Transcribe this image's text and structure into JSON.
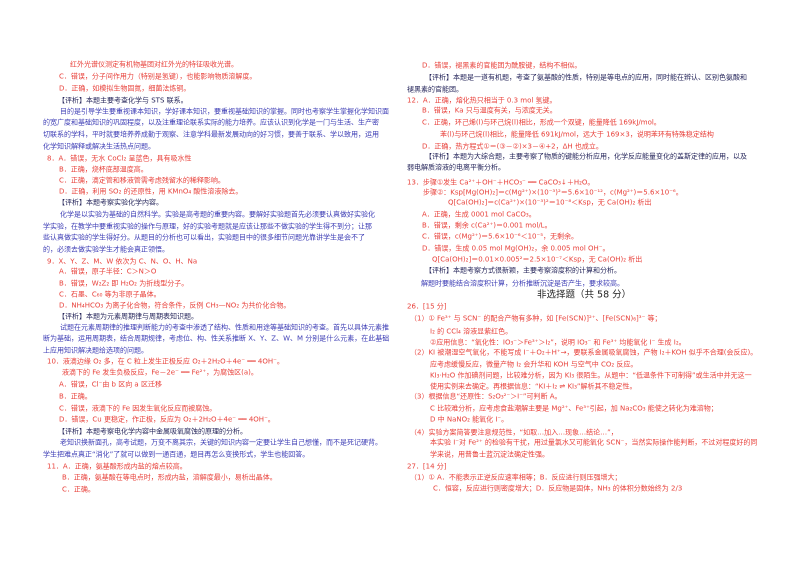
{
  "colors": {
    "answer": "#e8403a",
    "commentary": "#3d3db5",
    "heading": "#25255a"
  },
  "left": [
    "红外光谱仪测定有机物基团对红外光的特征吸收光谱。",
    "C．错误，分子间作用力（特别是氢键），也能影响物质溶解度。",
    "D．正确，如模拟生物固氮，细菌法炼铜。",
    "【评析】本题主要考查化学与 STS 联系。",
    "目的是引导学生要重视课本知识，学好课本知识，要重视基础知识的掌握。同时也考察学生掌握化学知识面",
    "的宽广度和基础知识的巩固程度，以及注重理论联系实际的能力培养。应该认识到化学是一门与生活、生产密",
    "切联系的学科，平时就要培养养成勤于观察、注意学科最新发展动向的好习惯，要善于联系、学以致用，运用",
    "化学知识解释或解决生活热点问题。",
    "8．A．错误，无水 CoCl₂ 呈蓝色，具有吸水性",
    "B．正确，烧杯底部温度高。",
    "C．正确，滴定管和移液管需考虑残留水的稀释影响。",
    "D．正确，利用 SO₂ 的还原性，用 KMnO₄ 酸性溶液除去。",
    "【评析】本题考察实验化学内容。",
    "化学是以实验为基础的自然科学。实验是高考题的重要内容。要解好实验题首先必须要认真做好实验化",
    "学实验，在教学中要重视实验的操作与原理，好的实验考题就是应该让那些不做实验的学生得不到分；让那",
    "些认真做实验的学生得好分。从题目的分析也可以看出，实验题目中的很多细节问题光靠讲学生是会不了",
    "的，必须去做实验学生才能会真正领悟。",
    "9．X、Y、Z、M、W 依次为 C、N、O、H、Na",
    "A．错误，原子半径：C＞N＞O",
    "B．错误，W₂Z₂ 即 H₂O₂ 为折线型分子。",
    "C．石墨、C₆₀ 等为非原子晶体。",
    "D．NH₄HCO₃ 为离子化合物，符合条件，反例 CH₃—NO₂ 为共价化合物。",
    "【评析】本题为元素周期律与周期表知识题。",
    "试题在元素周期律的推理判断能力的考查中渗透了结构、性质和用途等基础知识的考查。首先以具体元素推",
    "断为基础，运用周期表，结合周期规律，考虑位、构、性关系推断 X、Y、Z、W、M 分别是什么元素，在此基础",
    "上应用知识解决题给选项的问题。",
    "10．液滴边缘 O₂ 多，在 C 粒上发生正极反应 O₂＋2H₂O＋4e⁻ ══ 4OH⁻。",
    "液滴下的 Fe 发生负极反应，Fe－2e⁻ ══ Fe²⁺，为腐蚀区(a)。",
    "A．错误，Cl⁻由 b 区向 a 区迁移",
    "B．正确。",
    "C．错误，液滴下的 Fe 因发生氧化反应而被腐蚀。",
    "D．错误，Cu 更稳定，作正极，反应为 O₂＋2H₂O＋4e⁻ ══ 4OH⁻。",
    "【评析】本题考察电化学内容中金属吸氧腐蚀的原理的分析。",
    "老知识换新面孔，高考试题，万变不离其宗，关键的知识内容一定要让学生自己想懂，而不是死记硬背。",
    "学生把难点真正“消化”了就可以做到一通百通，题目再怎么变换形式，学生也能回答。",
    "11．A．正确，氨基酸形成内盐的熔点较高。",
    "B．正确，氨基酸在等电点时，形成内盐，溶解度最小，易析出晶体。",
    "C．正确。"
  ],
  "right": [
    "D．错误，褪黑素的官能团为酰胺键，结构不相似。",
    "【评析】本题是一道有机题，考查了氨基酸的性质，特别是等电点的应用，同时能在辨认、区别色氨酸和",
    "褪黑素的官能团。",
    "12．A．正确，熔化热只相当于 0.3 mol 氢键。",
    "B．错误，Ka 只与温度有关，与浓度无关。",
    "C．正确，环己烯(l)与环己烷(l)相比，形成一个双键，能量降低 169kJ/mol。",
    "苯(l)与环己烷(l)相比，能量降低 691kJ/mol，远大于 169×3，说明苯环有特殊稳定结构",
    "D．正确，热方程式①＝(③－②)×3－④+2，ΔH 也成立。",
    "【评析】本题为大综合题，主要考察了物质的键能分析应用，化学反应能量变化的盖斯定律的应用，以及",
    "弱电解质溶液的电离平衡分析。",
    "13．步骤①发生 Ca²⁺＋OH⁻＋HCO₃⁻ ══ CaCO₃↓＋H₂O。",
    "步骤②：Ksp[Mg(OH)₂]＝c(Mg²⁺)×(10⁻³)²＝5.6×10⁻¹²，c(Mg²⁺)＝5.6×10⁻⁶。",
    "Q[Ca(OH)₂]＝c(Ca²⁺)×(10⁻³)²＝10⁻⁸＜Ksp，无 Ca(OH)₂ 析出",
    "A．正确，生成 0001 mol CaCO₃。",
    "B．错误，剩余 c(Ca²⁺)＝0.001 mol/L。",
    "C．错误，c(Mg²⁺)＝5.6×10⁻⁶＜10⁻⁵，无剩余。",
    "D．错误，生成 0.05 mol Mg(OH)₂，余 0.005 mol OH⁻。",
    "Q[Ca(OH)₂]＝0.01×0.005²＝2.5×10⁻⁷＜Ksp，无 Ca(OH)₂ 析出",
    "【评析】本题考察方式很新颖，主要考察溶度积的计算和分析。",
    "解题时要能结合溶度积计算，分析推断沉淀是否产生，要求较高。",
    "非选择题（共 58 分）",
    "26．[15 分]",
    "（1）① Fe³⁺ 与 SCN⁻ 的配合产物有多种，如 [Fe(SCN)]²⁺、[Fe(SCN)₆]³⁻ 等；",
    "I₂ 的 CCl₄ 溶液显紫红色。",
    "②应用信息：“氧化性：IO₃⁻＞Fe³⁺＞I₂”，说明 IO₃⁻ 和 Fe³⁺ 均能氧化 I⁻ 生成 I₂。",
    "（2）KI 被潮湿空气氧化，不能写成 I⁻＋O₂＋H⁺→，要联系金属吸氧腐蚀，产物 I₂＋KOH 似乎不合理(会反应)。",
    "应考虑缓慢反应，微量产物 I₂ 会升华和 KOH 与空气中 CO₂ 反应。",
    "KI₃·H₂O 作加碘剂问题，比较难分析，因为 KI₃ 很陌生。从题中：“低温条件下可制得”或生活中并无这一",
    "使用实例来去确定。再根据信息：“KI＋I₂ ⇌ KI₃”解析其不稳定性。",
    "（3）根据信息“还原性：S₂O₃²⁻＞I⁻”可判断 A。",
    "C 比较难分析，应考虑食盐潮解主要是 Mg²⁺、Fe³⁺引起，加 Na₂CO₃ 能使之转化为难溶物；",
    "D 中 NaNO₂ 能氧化 I⁻。",
    "（4）实验方案简答要注意规范性，“如取…加入…现象…结论…”，",
    "本实验 I⁻对 Fe²⁺ 的检验有干扰，用过量氯水又可能氧化 SCN⁻，当然实际操作能判断，不过对程度好的同",
    "学来说，用普鲁士蓝沉淀法确定性强。",
    "27．[14 分]",
    "（1）① A．不能表示正逆反应速率相等；B．反应进行则压强增大；",
    "C．恒容，反应进行则密度增大；D．反应物是固体，NH₃ 的体积分数始终为 2/3"
  ]
}
